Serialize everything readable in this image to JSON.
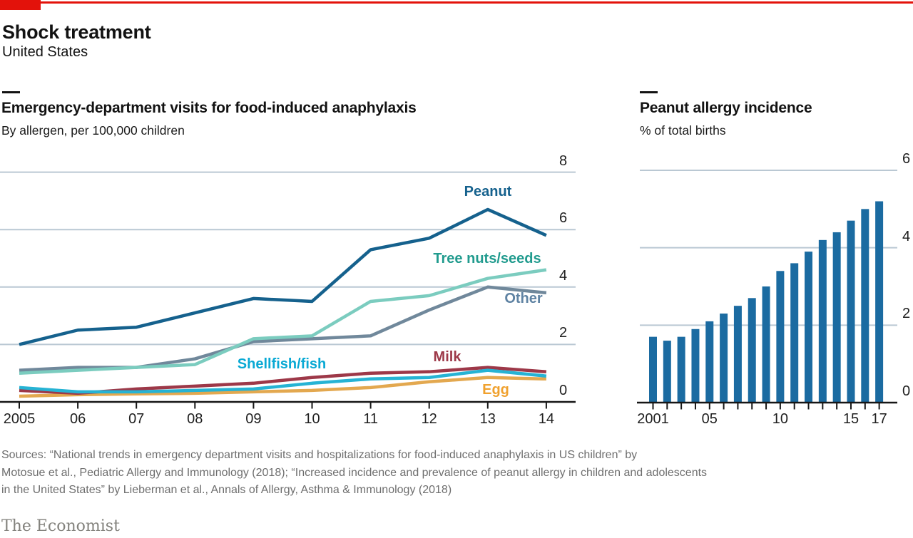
{
  "header": {
    "title": "Shock treatment",
    "subtitle": "United States"
  },
  "colors": {
    "accent_red": "#e3120b",
    "grid": "#bac8d3",
    "axis": "#161616",
    "tick_label": "#1f1f1f",
    "sources_gray": "#6e6e6e",
    "brand_gray": "#83827d"
  },
  "chart_data": [
    {
      "id": "ed-visits",
      "type": "line",
      "title": "Emergency-department visits for food-induced anaphylaxis",
      "subtitle": "By allergen, per 100,000 children",
      "x": [
        2005,
        2006,
        2007,
        2008,
        2009,
        2010,
        2011,
        2012,
        2013,
        2014
      ],
      "x_tick_labels": [
        "2005",
        "06",
        "07",
        "08",
        "09",
        "10",
        "11",
        "12",
        "13",
        "14"
      ],
      "y_ticks": [
        0,
        2,
        4,
        6,
        8
      ],
      "ylim": [
        0,
        8
      ],
      "grid": true,
      "legend_position": "direct-labels-on-chart",
      "series": [
        {
          "name": "Peanut",
          "color": "#15618d",
          "label_color": "#15618d",
          "values": [
            2.0,
            2.5,
            2.6,
            3.1,
            3.6,
            3.5,
            5.3,
            5.7,
            6.7,
            5.8
          ]
        },
        {
          "name": "Tree nuts/seeds",
          "color": "#7bccbf",
          "label_color": "#219b8e",
          "values": [
            1.0,
            1.1,
            1.2,
            1.3,
            2.2,
            2.3,
            3.5,
            3.7,
            4.3,
            4.6
          ]
        },
        {
          "name": "Other",
          "color": "#70889b",
          "label_color": "#5f83a3",
          "values": [
            1.1,
            1.2,
            1.2,
            1.5,
            2.1,
            2.2,
            2.3,
            3.2,
            4.0,
            3.8
          ]
        },
        {
          "name": "Milk",
          "color": "#9d3848",
          "label_color": "#9d3848",
          "values": [
            0.4,
            0.3,
            0.45,
            0.55,
            0.65,
            0.85,
            1.0,
            1.05,
            1.2,
            1.05
          ]
        },
        {
          "name": "Shellfish/fish",
          "color": "#26b3d4",
          "label_color": "#09a9d4",
          "values": [
            0.5,
            0.35,
            0.35,
            0.4,
            0.45,
            0.65,
            0.8,
            0.85,
            1.1,
            0.9
          ]
        },
        {
          "name": "Egg",
          "color": "#e3a84f",
          "label_color": "#f0a12e",
          "values": [
            0.2,
            0.25,
            0.28,
            0.3,
            0.35,
            0.4,
            0.5,
            0.7,
            0.85,
            0.8
          ]
        }
      ]
    },
    {
      "id": "peanut-incidence",
      "type": "bar",
      "title": "Peanut allergy incidence",
      "subtitle": "% of total births",
      "categories": [
        2001,
        2002,
        2003,
        2004,
        2005,
        2006,
        2007,
        2008,
        2009,
        2010,
        2011,
        2012,
        2013,
        2014,
        2015,
        2016,
        2017
      ],
      "x_tick_labels": [
        "2001",
        "",
        "",
        "",
        "05",
        "",
        "",
        "",
        "",
        "10",
        "",
        "",
        "",
        "",
        "15",
        "",
        "17"
      ],
      "values": [
        1.7,
        1.6,
        1.7,
        1.9,
        2.1,
        2.3,
        2.5,
        2.7,
        3.0,
        3.4,
        3.6,
        3.9,
        4.2,
        4.4,
        4.7,
        5.0,
        5.2
      ],
      "y_ticks": [
        0,
        2,
        4,
        6
      ],
      "ylim": [
        0,
        6
      ],
      "grid": true,
      "bar_color": "#1b6ba1"
    }
  ],
  "sources": {
    "lines": [
      "Sources: “National trends in emergency department visits and hospitalizations for food-induced anaphylaxis in US children” by",
      "Motosue et al., Pediatric Allergy and Immunology (2018); “Increased incidence and prevalence of peanut allergy in children and adolescents",
      "in the United States” by Lieberman et al., Annals of Allergy, Asthma & Immunology (2018)"
    ]
  },
  "footer": {
    "brand": "The Economist"
  }
}
